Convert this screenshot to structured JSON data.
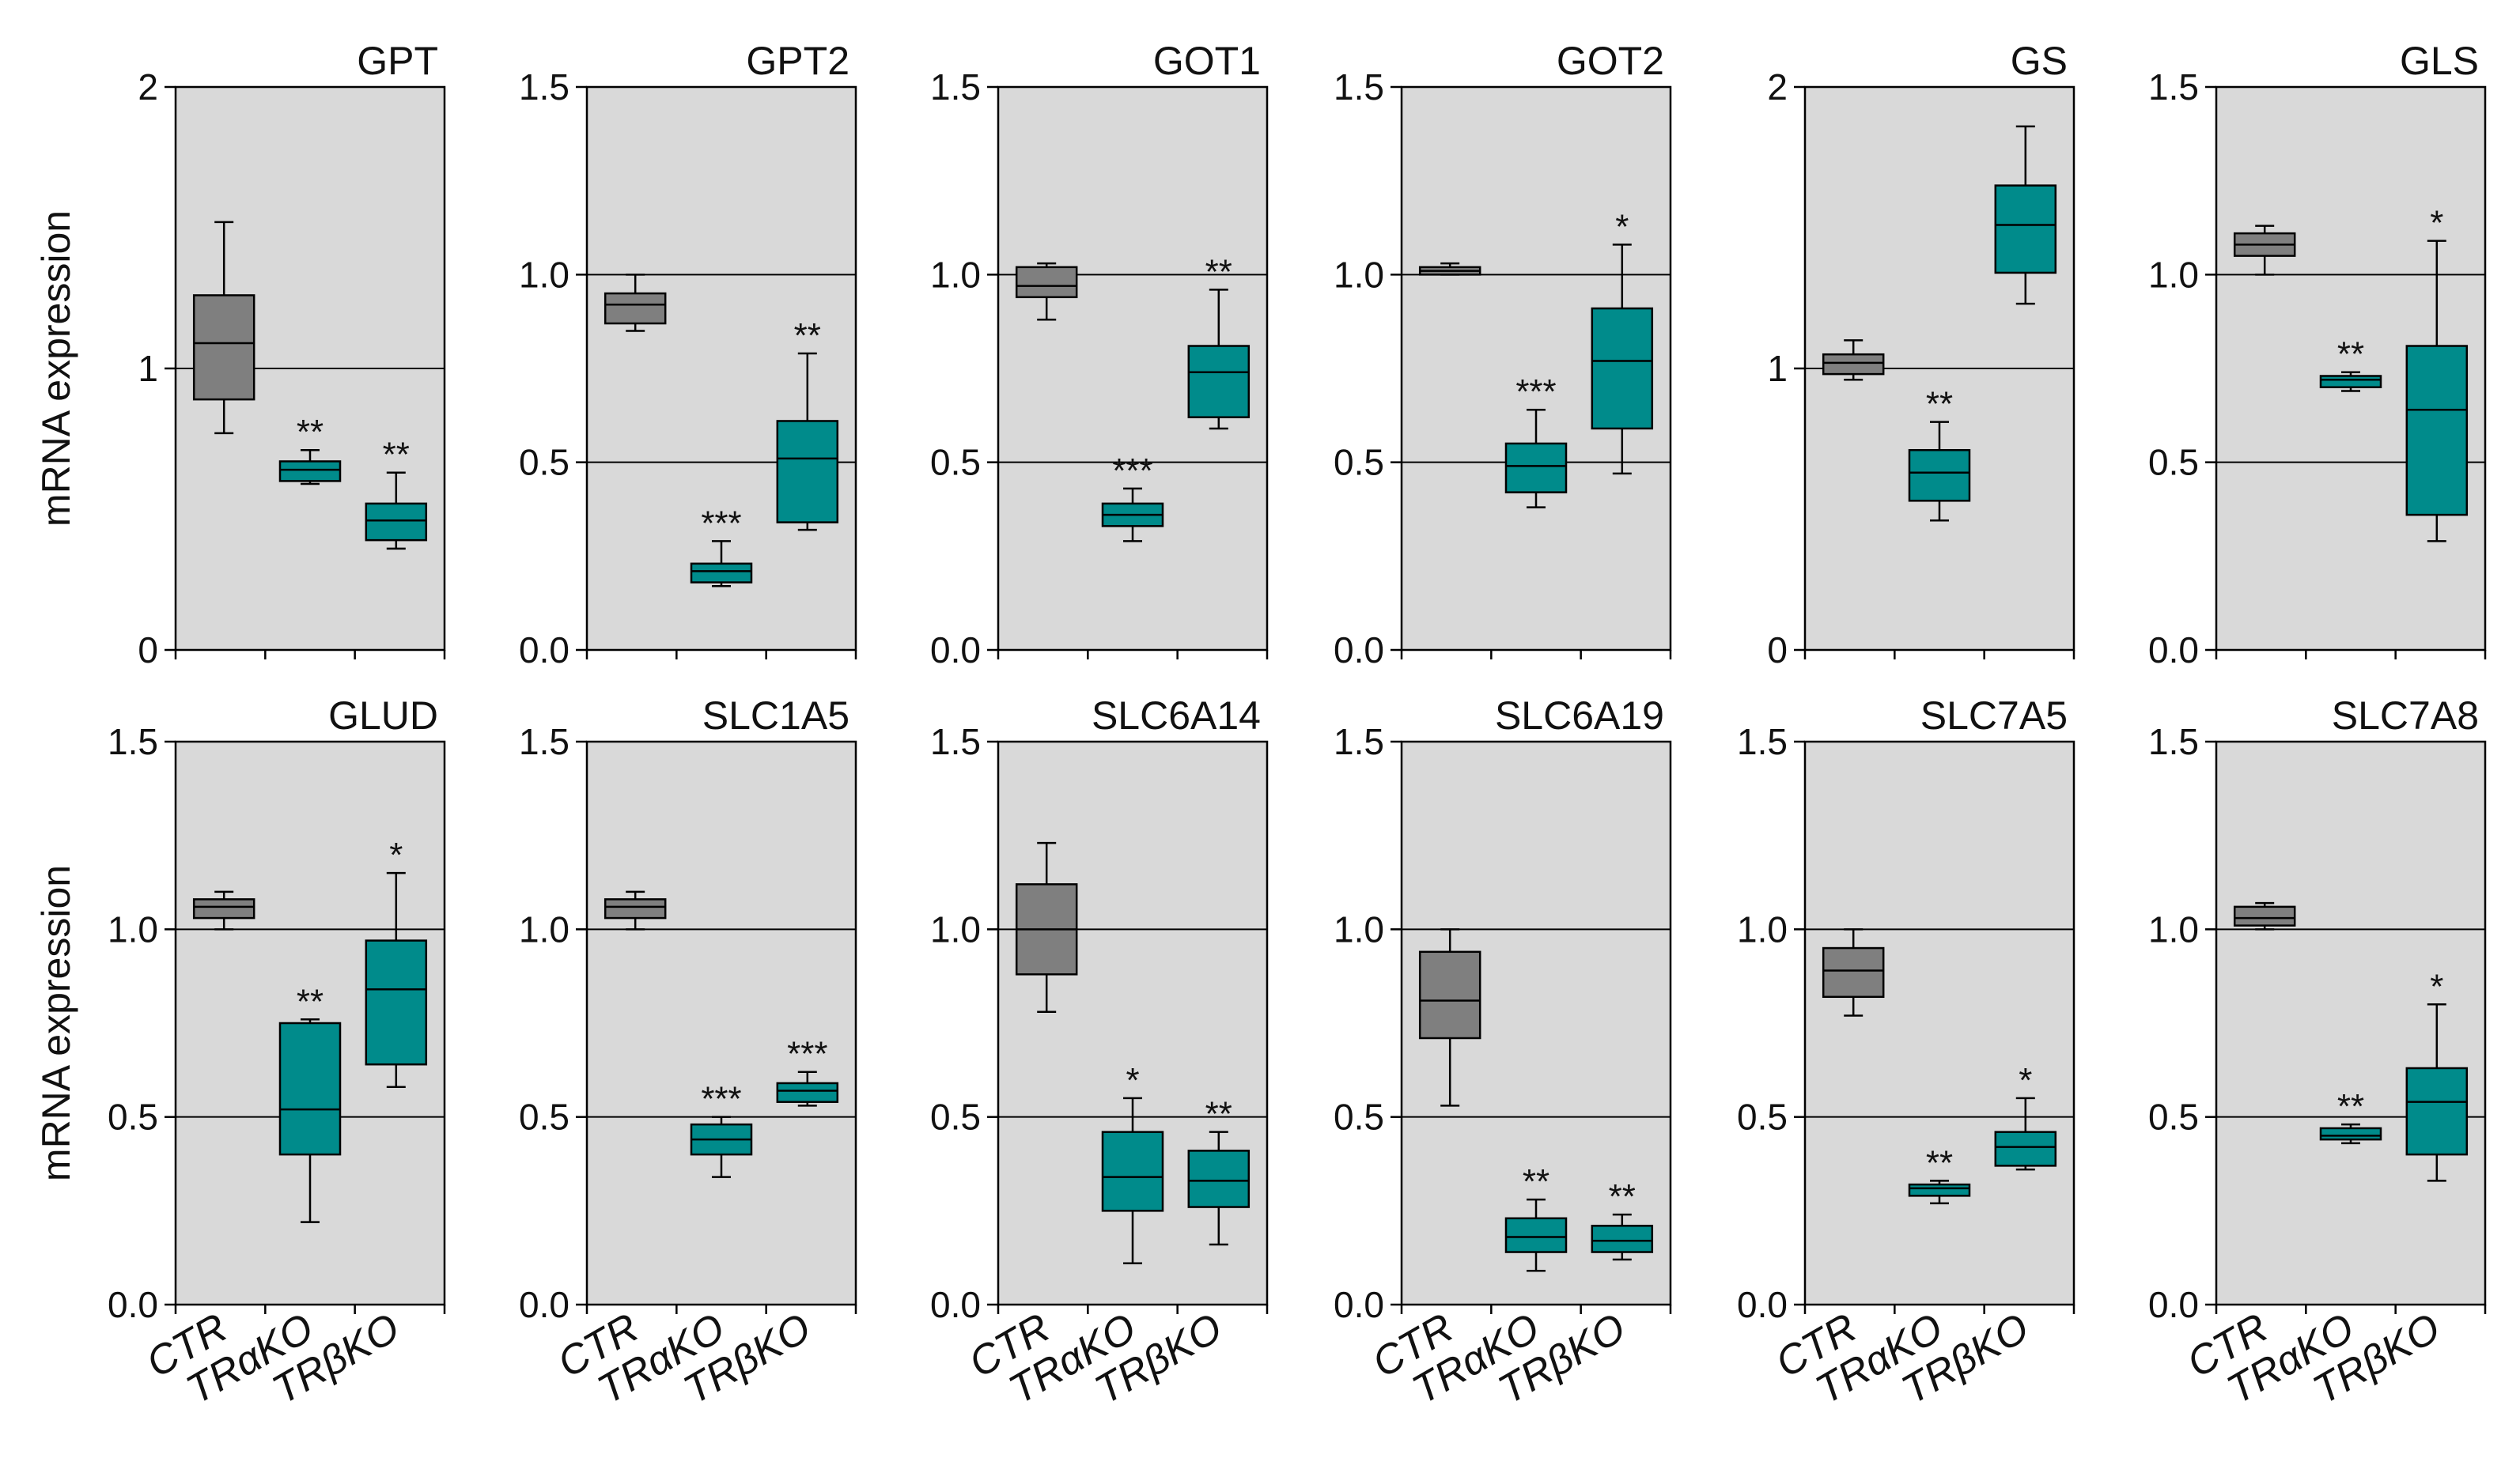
{
  "chart_data": {
    "type": "boxplot",
    "rows": [
      {
        "ylabel": "mRNA expression",
        "panels": [
          {
            "title": "GPT",
            "ylim": [
              0,
              2
            ],
            "ticks": [
              "0",
              "1",
              "2"
            ],
            "boxes": [
              {
                "group": "CTR",
                "min": 0.77,
                "q1": 0.89,
                "median": 1.09,
                "q3": 1.26,
                "max": 1.52,
                "sig": ""
              },
              {
                "group": "TRαKO",
                "min": 0.59,
                "q1": 0.6,
                "median": 0.64,
                "q3": 0.67,
                "max": 0.71,
                "sig": "**"
              },
              {
                "group": "TRβKO",
                "min": 0.36,
                "q1": 0.39,
                "median": 0.46,
                "q3": 0.52,
                "max": 0.63,
                "sig": "**"
              }
            ]
          },
          {
            "title": "GPT2",
            "ylim": [
              0,
              1.5
            ],
            "ticks": [
              "0.0",
              "0.5",
              "1.0",
              "1.5"
            ],
            "boxes": [
              {
                "group": "CTR",
                "min": 0.85,
                "q1": 0.87,
                "median": 0.92,
                "q3": 0.95,
                "max": 1.0,
                "sig": ""
              },
              {
                "group": "TRαKO",
                "min": 0.17,
                "q1": 0.18,
                "median": 0.21,
                "q3": 0.23,
                "max": 0.29,
                "sig": "***"
              },
              {
                "group": "TRβKO",
                "min": 0.32,
                "q1": 0.34,
                "median": 0.51,
                "q3": 0.61,
                "max": 0.79,
                "sig": "**"
              }
            ]
          },
          {
            "title": "GOT1",
            "ylim": [
              0,
              1.5
            ],
            "ticks": [
              "0.0",
              "0.5",
              "1.0",
              "1.5"
            ],
            "boxes": [
              {
                "group": "CTR",
                "min": 0.88,
                "q1": 0.94,
                "median": 0.97,
                "q3": 1.02,
                "max": 1.03,
                "sig": ""
              },
              {
                "group": "TRαKO",
                "min": 0.29,
                "q1": 0.33,
                "median": 0.36,
                "q3": 0.39,
                "max": 0.43,
                "sig": "***"
              },
              {
                "group": "TRβKO",
                "min": 0.59,
                "q1": 0.62,
                "median": 0.74,
                "q3": 0.81,
                "max": 0.96,
                "sig": "**"
              }
            ]
          },
          {
            "title": "GOT2",
            "ylim": [
              0,
              1.5
            ],
            "ticks": [
              "0.0",
              "0.5",
              "1.0",
              "1.5"
            ],
            "boxes": [
              {
                "group": "CTR",
                "min": 1.0,
                "q1": 1.0,
                "median": 1.01,
                "q3": 1.02,
                "max": 1.03,
                "sig": ""
              },
              {
                "group": "TRαKO",
                "min": 0.38,
                "q1": 0.42,
                "median": 0.49,
                "q3": 0.55,
                "max": 0.64,
                "sig": "***"
              },
              {
                "group": "TRβKO",
                "min": 0.47,
                "q1": 0.59,
                "median": 0.77,
                "q3": 0.91,
                "max": 1.08,
                "sig": "*"
              }
            ]
          },
          {
            "title": "GS",
            "ylim": [
              0,
              2
            ],
            "ticks": [
              "0",
              "1",
              "2"
            ],
            "boxes": [
              {
                "group": "CTR",
                "min": 0.96,
                "q1": 0.98,
                "median": 1.02,
                "q3": 1.05,
                "max": 1.1,
                "sig": ""
              },
              {
                "group": "TRαKO",
                "min": 0.46,
                "q1": 0.53,
                "median": 0.63,
                "q3": 0.71,
                "max": 0.81,
                "sig": "**"
              },
              {
                "group": "TRβKO",
                "min": 1.23,
                "q1": 1.34,
                "median": 1.51,
                "q3": 1.65,
                "max": 1.86,
                "sig": ""
              }
            ]
          },
          {
            "title": "GLS",
            "ylim": [
              0,
              1.5
            ],
            "ticks": [
              "0.0",
              "0.5",
              "1.0",
              "1.5"
            ],
            "boxes": [
              {
                "group": "CTR",
                "min": 1.0,
                "q1": 1.05,
                "median": 1.08,
                "q3": 1.11,
                "max": 1.13,
                "sig": ""
              },
              {
                "group": "TRαKO",
                "min": 0.69,
                "q1": 0.7,
                "median": 0.72,
                "q3": 0.73,
                "max": 0.74,
                "sig": "**"
              },
              {
                "group": "TRβKO",
                "min": 0.29,
                "q1": 0.36,
                "median": 0.64,
                "q3": 0.81,
                "max": 1.09,
                "sig": "*"
              }
            ]
          }
        ]
      },
      {
        "ylabel": "mRNA expression",
        "panels": [
          {
            "title": "GLUD",
            "ylim": [
              0,
              1.5
            ],
            "ticks": [
              "0.0",
              "0.5",
              "1.0",
              "1.5"
            ],
            "boxes": [
              {
                "group": "CTR",
                "min": 1.0,
                "q1": 1.03,
                "median": 1.06,
                "q3": 1.08,
                "max": 1.1,
                "sig": ""
              },
              {
                "group": "TRαKO",
                "min": 0.22,
                "q1": 0.4,
                "median": 0.52,
                "q3": 0.75,
                "max": 0.76,
                "sig": "**"
              },
              {
                "group": "TRβKO",
                "min": 0.58,
                "q1": 0.64,
                "median": 0.84,
                "q3": 0.97,
                "max": 1.15,
                "sig": "*"
              }
            ]
          },
          {
            "title": "SLC1A5",
            "ylim": [
              0,
              1.5
            ],
            "ticks": [
              "0.0",
              "0.5",
              "1.0",
              "1.5"
            ],
            "boxes": [
              {
                "group": "CTR",
                "min": 1.0,
                "q1": 1.03,
                "median": 1.06,
                "q3": 1.08,
                "max": 1.1,
                "sig": ""
              },
              {
                "group": "TRαKO",
                "min": 0.34,
                "q1": 0.4,
                "median": 0.44,
                "q3": 0.48,
                "max": 0.5,
                "sig": "***"
              },
              {
                "group": "TRβKO",
                "min": 0.53,
                "q1": 0.54,
                "median": 0.57,
                "q3": 0.59,
                "max": 0.62,
                "sig": "***"
              }
            ]
          },
          {
            "title": "SLC6A14",
            "ylim": [
              0,
              1.5
            ],
            "ticks": [
              "0.0",
              "0.5",
              "1.0",
              "1.5"
            ],
            "boxes": [
              {
                "group": "CTR",
                "min": 0.78,
                "q1": 0.88,
                "median": 1.0,
                "q3": 1.12,
                "max": 1.23,
                "sig": ""
              },
              {
                "group": "TRαKO",
                "min": 0.11,
                "q1": 0.25,
                "median": 0.34,
                "q3": 0.46,
                "max": 0.55,
                "sig": "*"
              },
              {
                "group": "TRβKO",
                "min": 0.16,
                "q1": 0.26,
                "median": 0.33,
                "q3": 0.41,
                "max": 0.46,
                "sig": "**"
              }
            ]
          },
          {
            "title": "SLC6A19",
            "ylim": [
              0,
              1.5
            ],
            "ticks": [
              "0.0",
              "0.5",
              "1.0",
              "1.5"
            ],
            "boxes": [
              {
                "group": "CTR",
                "min": 0.53,
                "q1": 0.71,
                "median": 0.81,
                "q3": 0.94,
                "max": 1.0,
                "sig": ""
              },
              {
                "group": "TRαKO",
                "min": 0.09,
                "q1": 0.14,
                "median": 0.18,
                "q3": 0.23,
                "max": 0.28,
                "sig": "**"
              },
              {
                "group": "TRβKO",
                "min": 0.12,
                "q1": 0.14,
                "median": 0.17,
                "q3": 0.21,
                "max": 0.24,
                "sig": "**"
              }
            ]
          },
          {
            "title": "SLC7A5",
            "ylim": [
              0,
              1.5
            ],
            "ticks": [
              "0.0",
              "0.5",
              "1.0",
              "1.5"
            ],
            "boxes": [
              {
                "group": "CTR",
                "min": 0.77,
                "q1": 0.82,
                "median": 0.89,
                "q3": 0.95,
                "max": 1.0,
                "sig": ""
              },
              {
                "group": "TRαKO",
                "min": 0.27,
                "q1": 0.29,
                "median": 0.31,
                "q3": 0.32,
                "max": 0.33,
                "sig": "**"
              },
              {
                "group": "TRβKO",
                "min": 0.36,
                "q1": 0.37,
                "median": 0.42,
                "q3": 0.46,
                "max": 0.55,
                "sig": "*"
              }
            ]
          },
          {
            "title": "SLC7A8",
            "ylim": [
              0,
              1.5
            ],
            "ticks": [
              "0.0",
              "0.5",
              "1.0",
              "1.5"
            ],
            "boxes": [
              {
                "group": "CTR",
                "min": 1.0,
                "q1": 1.01,
                "median": 1.03,
                "q3": 1.06,
                "max": 1.07,
                "sig": ""
              },
              {
                "group": "TRαKO",
                "min": 0.43,
                "q1": 0.44,
                "median": 0.45,
                "q3": 0.47,
                "max": 0.48,
                "sig": "**"
              },
              {
                "group": "TRβKO",
                "min": 0.33,
                "q1": 0.4,
                "median": 0.54,
                "q3": 0.63,
                "max": 0.8,
                "sig": "*"
              }
            ]
          }
        ]
      }
    ],
    "categories": [
      "CTR",
      "TRαKO",
      "TRβKO"
    ],
    "reference_lines": "horizontal lines at each inner tick",
    "colors": {
      "CTR": "#7f7f7f",
      "TRαKO": "#008b8b",
      "TRβKO": "#008b8b",
      "panel_bg": "#d9d9d9"
    }
  }
}
